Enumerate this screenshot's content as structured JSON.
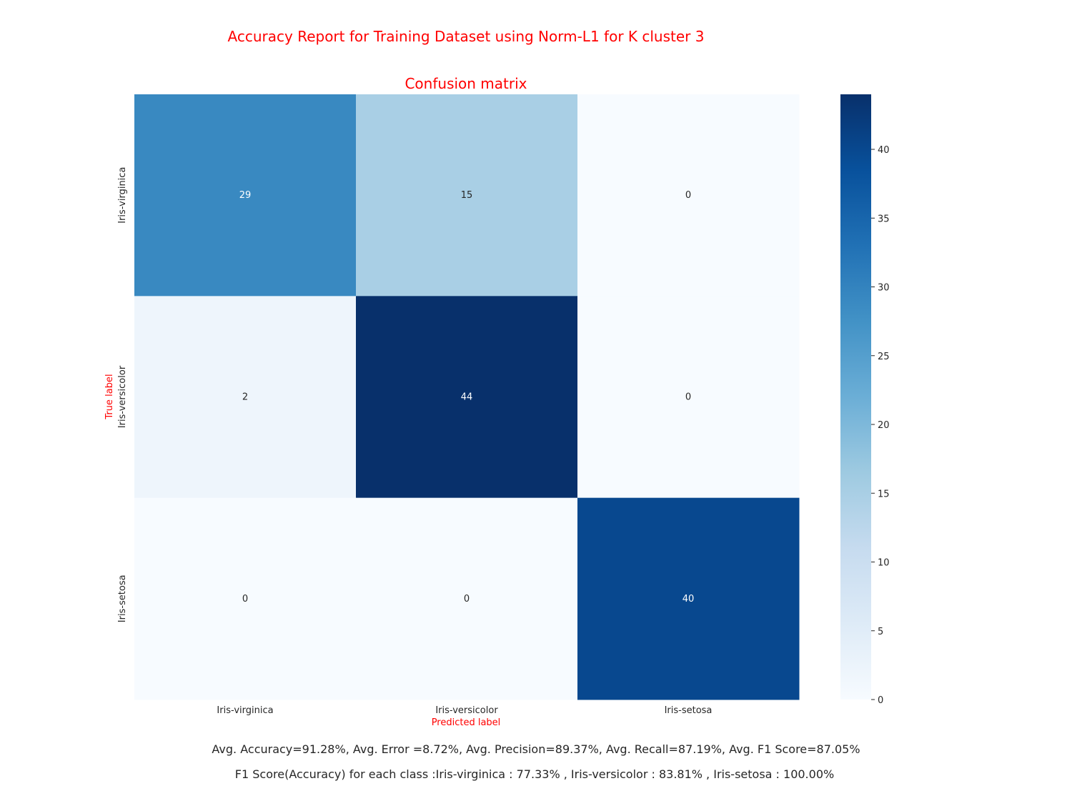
{
  "figure": {
    "suptitle": "Accuracy Report for Training Dataset using Norm-L1 for K cluster 3",
    "summary_line": "Avg. Accuracy=91.28%, Avg. Error =8.72%, Avg. Precision=89.37%, Avg. Recall=87.19%, Avg. F1 Score=87.05%",
    "f1_line": "F1 Score(Accuracy) for each class :Iris-virginica : 77.33% , Iris-versicolor : 83.81% , Iris-setosa : 100.00%"
  },
  "chart_data": {
    "type": "heatmap",
    "title": "Confusion matrix",
    "xlabel": "Predicted label",
    "ylabel": "True label",
    "x_categories": [
      "Iris-virginica",
      "Iris-versicolor",
      "Iris-setosa"
    ],
    "y_categories": [
      "Iris-virginica",
      "Iris-versicolor",
      "Iris-setosa"
    ],
    "values": [
      [
        29,
        15,
        0
      ],
      [
        2,
        44,
        0
      ],
      [
        0,
        0,
        40
      ]
    ],
    "colormap": "Blues",
    "colorbar": {
      "range": [
        0,
        44
      ],
      "ticks": [
        0,
        5,
        10,
        15,
        20,
        25,
        30,
        35,
        40
      ]
    },
    "colors": {
      "title": "#ff0000",
      "axis_labels": "#ff0000",
      "tick_labels": "#262626"
    }
  }
}
